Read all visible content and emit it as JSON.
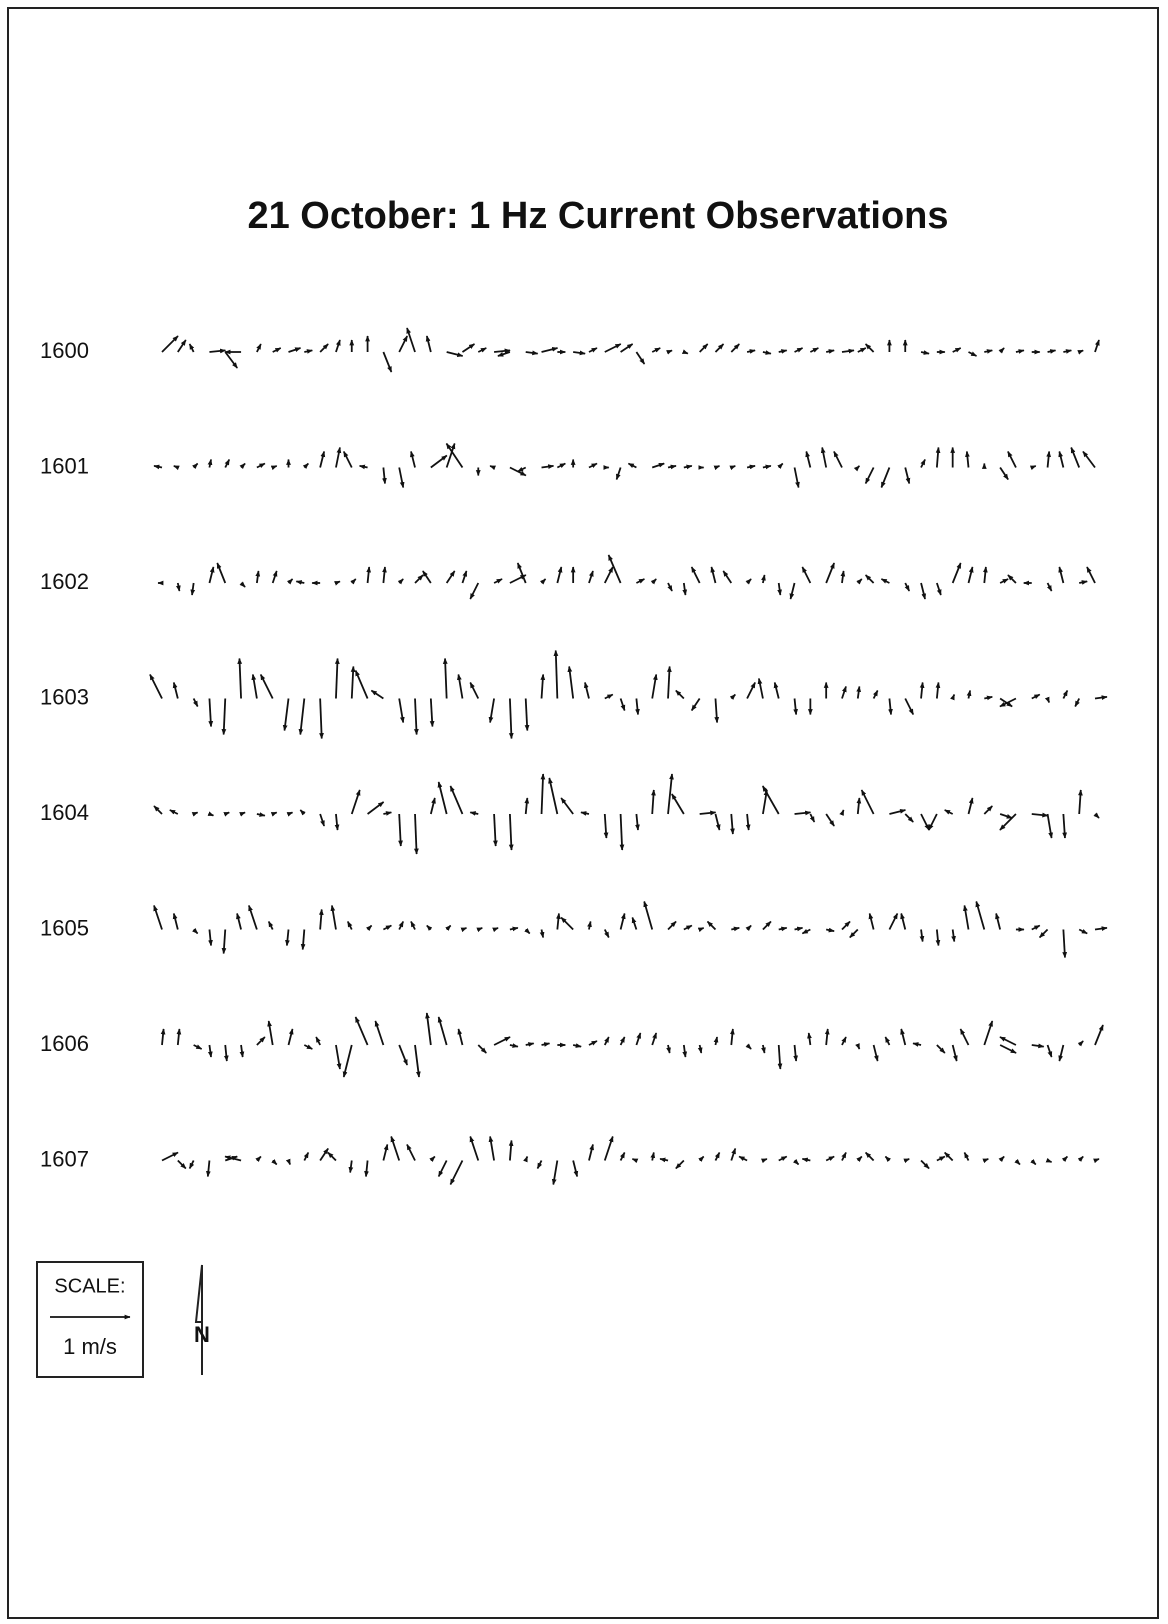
{
  "chart_data": {
    "type": "vector",
    "title": "21 October: 1 Hz Current Observations",
    "rows": [
      {
        "label": "1600",
        "u": [
          0.2,
          0.1,
          -0.05,
          0.2,
          0.15,
          -0.2,
          0.05,
          0.1,
          0.15,
          0.1,
          0.1,
          0.05,
          0,
          0,
          0.1,
          0.1,
          -0.1,
          -0.05,
          0.2,
          0.15,
          0.1,
          0.2,
          -0.15,
          0.15,
          0.2,
          0.1,
          0.15,
          0.1,
          0.2,
          0.15,
          0.1,
          0.1,
          0.05,
          0.05,
          0.1,
          0.1,
          0.1,
          0.1,
          0.1,
          0.1,
          0.1,
          0.1,
          0.1,
          0.15,
          0.1,
          -0.1,
          0,
          0,
          0.1,
          0.1,
          0.1,
          0.1,
          0.1,
          0.05,
          0.1,
          0.1,
          0.1,
          0.1,
          0.05,
          0.05
        ],
        "v": [
          0.2,
          0.15,
          0.1,
          0.02,
          -0.2,
          0,
          0.1,
          0.05,
          0.05,
          0.02,
          0.1,
          0.15,
          0.15,
          0.2,
          -0.25,
          0.2,
          0.3,
          0.2,
          -0.05,
          0.1,
          0.05,
          0.02,
          -0.05,
          -0.02,
          0.05,
          0,
          -0.02,
          0.05,
          0.1,
          0.1,
          -0.15,
          0.05,
          0.02,
          -0.02,
          0.1,
          0.1,
          0.1,
          0.02,
          -0.02,
          0.02,
          0.05,
          0.05,
          0.02,
          0.02,
          0.05,
          0.1,
          0.15,
          0.15,
          -0.02,
          0,
          0.05,
          -0.05,
          0.02,
          0.05,
          0.02,
          0,
          0.02,
          0.02,
          0.02,
          0.15
        ]
      },
      {
        "label": "1601",
        "u": [
          -0.1,
          -0.05,
          0.05,
          0.02,
          0.05,
          0.05,
          0.1,
          0.05,
          0,
          0.05,
          0.05,
          0.05,
          -0.1,
          -0.1,
          0.02,
          0.05,
          -0.05,
          0.2,
          0.1,
          -0.2,
          0,
          -0.05,
          0.2,
          -0.1,
          0.15,
          0.1,
          0,
          0.1,
          0.05,
          -0.05,
          -0.1,
          0.15,
          0.1,
          0.1,
          0.05,
          0.05,
          0.05,
          0.1,
          0.1,
          0.05,
          0.05,
          -0.05,
          -0.05,
          -0.1,
          0.02,
          -0.1,
          -0.1,
          0.05,
          0.05,
          0.02,
          0,
          -0.02,
          0,
          0.1,
          -0.1,
          0.05,
          0.02,
          -0.05,
          -0.1,
          -0.15
        ],
        "v": [
          0.02,
          0.02,
          0.05,
          0.1,
          0.1,
          0.05,
          0.05,
          0.02,
          0.1,
          0.05,
          0.2,
          0.25,
          0.2,
          0.02,
          -0.2,
          -0.25,
          0.2,
          0.15,
          0.3,
          0.3,
          -0.1,
          0.02,
          -0.1,
          -0.05,
          0.02,
          0.05,
          0.1,
          0.05,
          0,
          -0.15,
          0.05,
          0.05,
          0.02,
          0.02,
          0,
          0.02,
          0.02,
          0.02,
          0.02,
          0.05,
          -0.25,
          0.2,
          0.25,
          0.2,
          0.02,
          -0.2,
          -0.25,
          -0.2,
          0.1,
          0.25,
          0.25,
          0.2,
          0.05,
          -0.15,
          0.2,
          0.02,
          0.2,
          0.2,
          0.25,
          0.2
        ]
      },
      {
        "label": "1602",
        "u": [
          -0.05,
          0.02,
          -0.02,
          0.05,
          -0.1,
          0.05,
          0.02,
          0.05,
          0.05,
          -0.1,
          -0.1,
          0.05,
          0.05,
          0.02,
          0.02,
          0.05,
          0.1,
          -0.1,
          0.1,
          0.05,
          -0.1,
          0.1,
          0.2,
          -0.1,
          0.05,
          0.05,
          0,
          0.05,
          0.1,
          -0.15,
          0.1,
          0.05,
          0.05,
          0.02,
          -0.1,
          -0.05,
          -0.1,
          0.05,
          0.02,
          0.02,
          -0.05,
          -0.1,
          0.1,
          0.02,
          0.05,
          -0.1,
          -0.1,
          0.05,
          0.05,
          0.05,
          0.1,
          0.05,
          0.02,
          0.1,
          -0.1,
          -0.1,
          0.05,
          -0.05,
          0.1,
          -0.1
        ],
        "v": [
          0,
          -0.1,
          -0.15,
          0.2,
          0.25,
          -0.05,
          0.15,
          0.15,
          0.05,
          0.02,
          0,
          0.02,
          0.05,
          0.2,
          0.2,
          0.05,
          0.1,
          0.15,
          0.15,
          0.15,
          -0.2,
          0.05,
          0.1,
          0.25,
          0.05,
          0.2,
          0.2,
          0.15,
          0.2,
          0.35,
          0.05,
          0.05,
          -0.1,
          -0.15,
          0.2,
          0.2,
          0.15,
          0.05,
          0.1,
          -0.15,
          -0.2,
          0.2,
          0.25,
          0.15,
          0.05,
          0.1,
          0.05,
          -0.1,
          -0.2,
          -0.15,
          0.25,
          0.2,
          0.2,
          0.05,
          0.1,
          0,
          -0.1,
          0.2,
          0.02,
          0.2
        ]
      },
      {
        "label": "1603",
        "u": [
          -0.15,
          -0.05,
          0.05,
          0.02,
          -0.02,
          -0.02,
          -0.05,
          -0.15,
          -0.05,
          -0.05,
          0.02,
          0.02,
          0.02,
          -0.15,
          -0.15,
          0.05,
          0.02,
          0.02,
          -0.02,
          -0.05,
          -0.1,
          -0.05,
          0.02,
          0.02,
          0.02,
          -0.02,
          -0.05,
          -0.05,
          0.1,
          0.05,
          0.02,
          0.05,
          0.02,
          -0.1,
          -0.1,
          0.02,
          0.05,
          0.1,
          -0.05,
          -0.05,
          0.02,
          0,
          0,
          0.05,
          0.02,
          0.05,
          0.02,
          0.1,
          0.02,
          0.02,
          0.02,
          0.02,
          0.1,
          0.15,
          -0.2,
          0.1,
          0.02,
          0.05,
          -0.05,
          0.15
        ],
        "v": [
          0.3,
          0.2,
          -0.1,
          -0.35,
          -0.45,
          0.5,
          0.3,
          0.3,
          -0.4,
          -0.45,
          -0.5,
          0.5,
          0.4,
          0.35,
          0.1,
          -0.3,
          -0.45,
          -0.35,
          0.5,
          0.3,
          0.2,
          -0.3,
          -0.5,
          -0.4,
          0.3,
          0.6,
          0.4,
          0.2,
          0.05,
          -0.15,
          -0.2,
          0.3,
          0.4,
          0.1,
          -0.15,
          -0.3,
          0.05,
          0.2,
          0.25,
          0.2,
          -0.2,
          -0.2,
          0.2,
          0.15,
          0.15,
          0.1,
          -0.2,
          -0.2,
          0.2,
          0.2,
          0.05,
          0.1,
          0.02,
          -0.1,
          -0.1,
          0.05,
          -0.05,
          0.1,
          -0.1,
          0.02
        ]
      },
      {
        "label": "1604",
        "u": [
          -0.1,
          -0.1,
          0.05,
          0.05,
          0.05,
          0.05,
          0.1,
          0.05,
          0.05,
          -0.05,
          0.05,
          0.02,
          0.1,
          0.2,
          0.1,
          0.02,
          0.02,
          0.05,
          -0.1,
          -0.15,
          -0.1,
          0.02,
          0.02,
          0.02,
          0.02,
          -0.1,
          -0.15,
          -0.1,
          0.02,
          0.02,
          0.02,
          0.02,
          0.05,
          -0.15,
          0.2,
          0.05,
          0.02,
          0.02,
          0.05,
          -0.2,
          0.2,
          0.05,
          0.1,
          0.02,
          0.02,
          -0.15,
          0.2,
          0.1,
          0.1,
          -0.1,
          -0.1,
          0.05,
          0.1,
          0.15,
          -0.2,
          0.2,
          0.05,
          0.02,
          0.02,
          0.05
        ],
        "v": [
          0.1,
          0.05,
          0.02,
          -0.02,
          0.02,
          0.02,
          -0.02,
          0.02,
          0.02,
          0.05,
          -0.15,
          -0.2,
          0.3,
          0.15,
          0.02,
          -0.4,
          -0.5,
          0.2,
          0.4,
          0.35,
          0.02,
          -0.4,
          -0.45,
          0.2,
          0.5,
          0.45,
          0.2,
          0.02,
          -0.3,
          -0.45,
          -0.2,
          0.3,
          0.5,
          0.25,
          0.02,
          -0.2,
          -0.25,
          -0.2,
          0.3,
          0.35,
          0.02,
          -0.1,
          -0.15,
          0.05,
          0.2,
          0.3,
          0.05,
          -0.1,
          -0.2,
          -0.2,
          0.05,
          0.2,
          0.1,
          -0.05,
          -0.2,
          -0.02,
          -0.3,
          -0.3,
          0.3,
          -0.05
        ]
      },
      {
        "label": "1605",
        "u": [
          -0.1,
          -0.05,
          0.05,
          0.02,
          -0.02,
          -0.05,
          -0.1,
          -0.05,
          -0.02,
          -0.02,
          0.02,
          -0.05,
          -0.05,
          0.05,
          0.1,
          0.05,
          -0.05,
          -0.05,
          0.05,
          0.05,
          0.05,
          0.05,
          0.1,
          0.05,
          0.02,
          0.02,
          -0.15,
          0.02,
          0.05,
          0.05,
          -0.05,
          -0.1,
          0.1,
          0.1,
          0.05,
          -0.1,
          0.1,
          0.05,
          0.1,
          0.1,
          0.1,
          -0.1,
          0.1,
          0.1,
          -0.1,
          -0.05,
          0.1,
          -0.05,
          0.02,
          0.02,
          0.02,
          -0.05,
          -0.1,
          -0.05,
          0.1,
          0.1,
          -0.1,
          0.02,
          0.1,
          0.15
        ],
        "v": [
          0.3,
          0.2,
          -0.05,
          -0.2,
          -0.3,
          0.2,
          0.3,
          0.1,
          -0.2,
          -0.25,
          0.25,
          0.3,
          0.1,
          0.05,
          0.05,
          0.1,
          0.1,
          0.05,
          0.05,
          0.02,
          0.02,
          0.02,
          0.02,
          -0.05,
          -0.1,
          0.2,
          0.15,
          0.1,
          -0.1,
          0.2,
          0.15,
          0.35,
          0.1,
          0.05,
          0.02,
          0.1,
          0.02,
          0.05,
          0.1,
          0.02,
          0.02,
          -0.05,
          -0.02,
          0.1,
          -0.1,
          0.2,
          0.2,
          0.2,
          -0.15,
          -0.2,
          -0.15,
          0.3,
          0.35,
          0.2,
          0,
          0.05,
          -0.1,
          -0.35,
          -0.05,
          0.02
        ]
      },
      {
        "label": "1606",
        "u": [
          0.02,
          0.02,
          0.1,
          0.02,
          0.02,
          0.02,
          0.1,
          -0.05,
          0.05,
          0.1,
          -0.05,
          0.05,
          -0.1,
          -0.15,
          -0.1,
          0.1,
          0.05,
          -0.05,
          -0.1,
          -0.05,
          0.1,
          0.2,
          0.1,
          0.1,
          0.1,
          0.1,
          0.1,
          0.1,
          0.05,
          0.05,
          0.05,
          0.05,
          0.02,
          0.02,
          0.02,
          0.02,
          0.02,
          0.05,
          0.02,
          0.02,
          0.02,
          -0.02,
          0.02,
          0.05,
          0.02,
          0.05,
          -0.05,
          -0.05,
          -0.1,
          0.1,
          0.05,
          -0.1,
          0.1,
          0.2,
          -0.2,
          0.15,
          0.05,
          -0.05,
          0.05,
          0.1
        ],
        "v": [
          0.2,
          0.2,
          -0.05,
          -0.15,
          -0.2,
          -0.15,
          0.1,
          0.3,
          0.2,
          -0.05,
          0.1,
          -0.3,
          -0.4,
          0.35,
          0.3,
          -0.25,
          -0.4,
          0.4,
          0.35,
          0.2,
          -0.1,
          0.1,
          -0.02,
          0.02,
          0.02,
          0,
          -0.02,
          0.05,
          0.1,
          0.1,
          0.15,
          0.15,
          -0.1,
          -0.15,
          -0.1,
          0.1,
          0.2,
          -0.05,
          -0.1,
          -0.3,
          -0.2,
          0.15,
          0.2,
          0.1,
          -0.05,
          -0.2,
          0.1,
          0.2,
          0.02,
          -0.1,
          -0.2,
          0.2,
          0.3,
          -0.1,
          0.1,
          -0.02,
          -0.15,
          -0.2,
          0.05,
          0.25
        ]
      },
      {
        "label": "1607",
        "u": [
          0.2,
          0.1,
          -0.05,
          -0.02,
          0.15,
          -0.2,
          0.05,
          0.05,
          0.02,
          0.05,
          0.1,
          -0.1,
          -0.02,
          -0.02,
          0.05,
          -0.1,
          -0.1,
          0.05,
          -0.1,
          -0.15,
          -0.1,
          -0.05,
          0.02,
          0.02,
          -0.05,
          -0.05,
          0.05,
          0.05,
          0.1,
          0.05,
          -0.05,
          0.02,
          -0.1,
          -0.1,
          0.05,
          0.05,
          0.05,
          -0.1,
          0.05,
          0.1,
          0.05,
          -0.1,
          0.1,
          0.05,
          0.05,
          -0.1,
          -0.05,
          0.05,
          0.1,
          0.1,
          -0.1,
          -0.05,
          0.05,
          0.05,
          0.05,
          0.05,
          0.05,
          0.05,
          0.05,
          0.05
        ],
        "v": [
          0.1,
          -0.1,
          -0.1,
          -0.2,
          0.05,
          0.05,
          0.05,
          -0.05,
          -0.05,
          0.1,
          0.15,
          0.1,
          -0.15,
          -0.2,
          0.2,
          0.3,
          0.2,
          0.05,
          -0.2,
          -0.3,
          0.3,
          0.3,
          0.25,
          0.05,
          -0.1,
          -0.3,
          -0.2,
          0.2,
          0.3,
          0.1,
          0.02,
          0.1,
          0.02,
          -0.1,
          0.05,
          0.1,
          0.15,
          0.05,
          0.02,
          0.05,
          -0.05,
          0.02,
          0.05,
          0.1,
          0.05,
          0.1,
          0.05,
          0.02,
          -0.1,
          0.05,
          0.1,
          0.1,
          0.02,
          0.05,
          -0.05,
          -0.05,
          -0.02,
          0.05,
          0.05,
          0.02
        ]
      }
    ],
    "scale": {
      "label": "SCALE:",
      "unit": "1 m/s",
      "value": 1
    },
    "north": "N",
    "color": "#111111"
  }
}
